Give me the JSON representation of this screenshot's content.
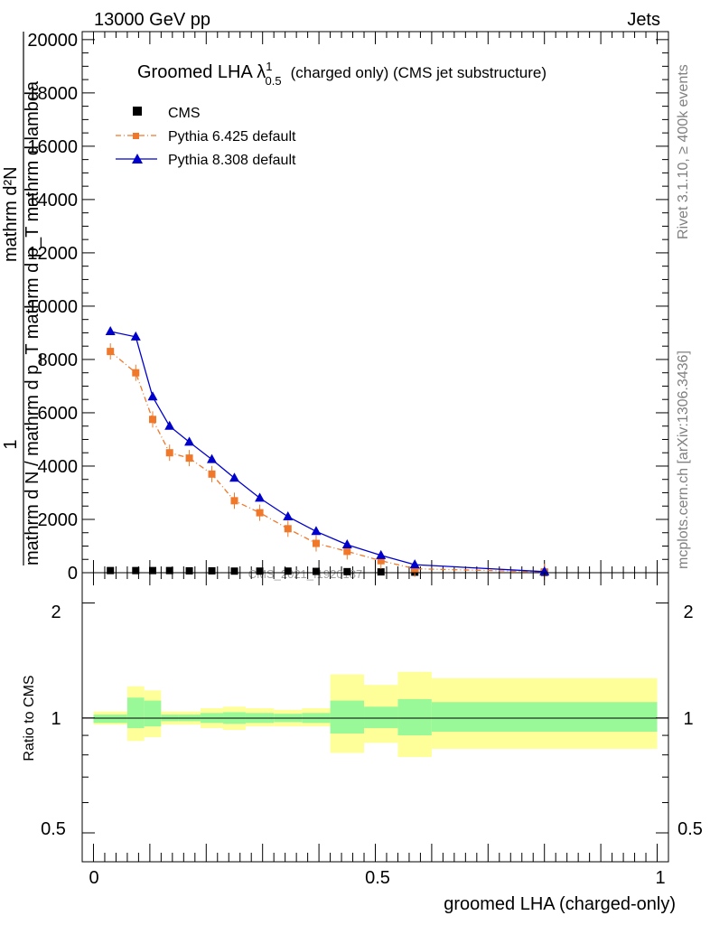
{
  "header": {
    "energy_label": "13000 GeV pp",
    "category_label": "Jets"
  },
  "side_labels": {
    "rivet": "Rivet 3.1.10, ≥ 400k events",
    "mcplots": "mcplots.cern.ch [arXiv:1306.3436]"
  },
  "top_panel": {
    "title_main": "Groomed LHA λ",
    "title_sup": "1",
    "title_sub": "0.5",
    "title_rest": "(charged only) (CMS jet substructure)",
    "ylabel_line1": "mathrm d²N",
    "ylabel_frac_num": "1",
    "ylabel_line2": "mathrm d N / mathrm d p_T mathrm d p_T mathrm d lambda",
    "watermark": "CMS_2021_I1920187",
    "y_ticks": [
      "0",
      "2000",
      "4000",
      "6000",
      "8000",
      "10000",
      "12000",
      "14000",
      "16000",
      "18000",
      "20000"
    ]
  },
  "bottom_panel": {
    "ylabel": "Ratio to CMS",
    "y_ticks": [
      "0.5",
      "1",
      "2"
    ],
    "x_ticks": [
      "0",
      "0.5",
      "1"
    ],
    "xlabel": "groomed LHA (charged-only)"
  },
  "legend": {
    "cms": "CMS",
    "pythia6": "Pythia 6.425 default",
    "pythia8": "Pythia 8.308 default"
  },
  "colors": {
    "cms": "#000000",
    "pythia6": "#f0782a",
    "pythia8": "#0000cc",
    "band_inner": "#99f999",
    "band_outer": "#ffff99"
  },
  "chart_data": [
    {
      "type": "line",
      "x": [
        0.03,
        0.075,
        0.105,
        0.135,
        0.17,
        0.21,
        0.25,
        0.295,
        0.345,
        0.395,
        0.45,
        0.51,
        0.57,
        0.8
      ],
      "xlim": [
        -0.02,
        1.02
      ],
      "ylim": [
        0,
        20300
      ],
      "series": [
        {
          "name": "CMS",
          "values": [
            80,
            80,
            80,
            80,
            70,
            70,
            60,
            60,
            60,
            50,
            40,
            30,
            20,
            10
          ]
        },
        {
          "name": "Pythia 6.425 default",
          "values": [
            8300,
            7500,
            5750,
            4500,
            4300,
            3700,
            2700,
            2250,
            1650,
            1100,
            800,
            450,
            150,
            30
          ]
        },
        {
          "name": "Pythia 8.308 default",
          "values": [
            9050,
            8850,
            6600,
            5500,
            4900,
            4250,
            3550,
            2800,
            2100,
            1550,
            1050,
            650,
            300,
            40
          ]
        }
      ]
    },
    {
      "type": "area",
      "bin_edges": [
        0.0,
        0.06,
        0.09,
        0.12,
        0.15,
        0.19,
        0.23,
        0.27,
        0.32,
        0.37,
        0.42,
        0.48,
        0.54,
        0.6,
        1.0
      ],
      "ylim": [
        0.42,
        2.4
      ],
      "ylabel": "Ratio to CMS",
      "xlabel": "groomed LHA (charged-only)",
      "inner_band": [
        [
          0.97,
          1.02
        ],
        [
          0.94,
          1.13
        ],
        [
          0.95,
          1.11
        ],
        [
          0.98,
          1.02
        ],
        [
          0.98,
          1.02
        ],
        [
          0.97,
          1.03
        ],
        [
          0.965,
          1.035
        ],
        [
          0.97,
          1.03
        ],
        [
          0.975,
          1.025
        ],
        [
          0.97,
          1.03
        ],
        [
          0.91,
          1.11
        ],
        [
          0.94,
          1.07
        ],
        [
          0.9,
          1.12
        ],
        [
          0.92,
          1.1
        ]
      ],
      "outer_band": [
        [
          0.96,
          1.04
        ],
        [
          0.87,
          1.21
        ],
        [
          0.89,
          1.18
        ],
        [
          0.96,
          1.04
        ],
        [
          0.96,
          1.04
        ],
        [
          0.94,
          1.06
        ],
        [
          0.93,
          1.07
        ],
        [
          0.95,
          1.06
        ],
        [
          0.95,
          1.05
        ],
        [
          0.95,
          1.06
        ],
        [
          0.81,
          1.3
        ],
        [
          0.86,
          1.22
        ],
        [
          0.79,
          1.32
        ],
        [
          0.83,
          1.27
        ]
      ]
    }
  ]
}
